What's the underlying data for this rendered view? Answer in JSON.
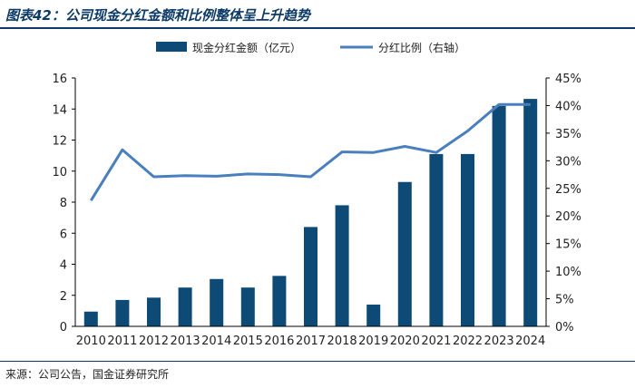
{
  "header": {
    "title": "图表42：公司现金分红金额和比例整体呈上升趋势"
  },
  "footer": {
    "source": "来源：公司公告，国金证券研究所"
  },
  "colors": {
    "bar": "#0d4a75",
    "line": "#4a7fbd",
    "rule": "#0d3a66"
  },
  "chart_data": {
    "type": "bar+line",
    "title": "图表42：公司现金分红金额和比例整体呈上升趋势",
    "categories": [
      "2010",
      "2011",
      "2012",
      "2013",
      "2014",
      "2015",
      "2016",
      "2017",
      "2018",
      "2019",
      "2020",
      "2021",
      "2022",
      "2023",
      "2024"
    ],
    "series": [
      {
        "name": "现金分红金额（亿元）",
        "type": "bar",
        "axis": "left",
        "values": [
          0.95,
          1.7,
          1.85,
          2.5,
          3.05,
          2.5,
          3.25,
          6.4,
          7.8,
          1.4,
          9.3,
          11.1,
          11.1,
          14.2,
          14.65
        ]
      },
      {
        "name": "分红比例（右轴）",
        "type": "line",
        "axis": "right",
        "values": [
          22.8,
          32.0,
          27.1,
          27.3,
          27.2,
          27.6,
          27.5,
          27.1,
          31.6,
          31.5,
          32.6,
          31.5,
          35.4,
          40.2,
          40.2
        ]
      }
    ],
    "y_left": {
      "min": 0,
      "max": 16,
      "ticks": [
        "0",
        "2",
        "4",
        "6",
        "8",
        "10",
        "12",
        "14",
        "16"
      ]
    },
    "y_right": {
      "min": 0,
      "max": 45,
      "ticks": [
        "0%",
        "5%",
        "10%",
        "15%",
        "20%",
        "25%",
        "30%",
        "35%",
        "40%",
        "45%"
      ]
    },
    "legend": [
      "现金分红金额（亿元）",
      "分红比例（右轴）"
    ],
    "legend_position": "top-center"
  }
}
